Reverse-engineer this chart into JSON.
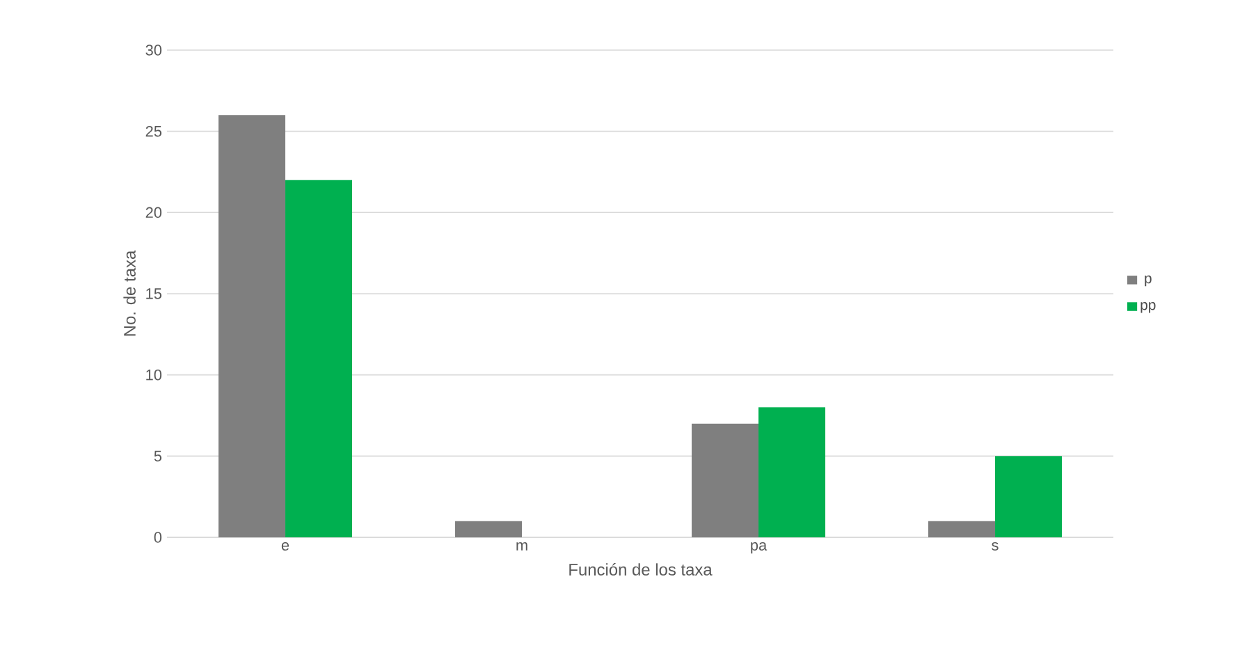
{
  "chart_data": {
    "type": "bar",
    "xlabel": "Función de los taxa",
    "ylabel": "No. de taxa",
    "categories": [
      "e",
      "m",
      "pa",
      "s"
    ],
    "series": [
      {
        "name": "p",
        "color": "#7f7f7f",
        "values": [
          26,
          1,
          7,
          1
        ]
      },
      {
        "name": "pp",
        "color": "#00b050",
        "values": [
          22,
          0,
          8,
          5
        ]
      }
    ],
    "ylim": [
      0,
      30
    ],
    "yticks": [
      0,
      5,
      10,
      15,
      20,
      25,
      30
    ],
    "grid": "y",
    "legend": "right"
  }
}
